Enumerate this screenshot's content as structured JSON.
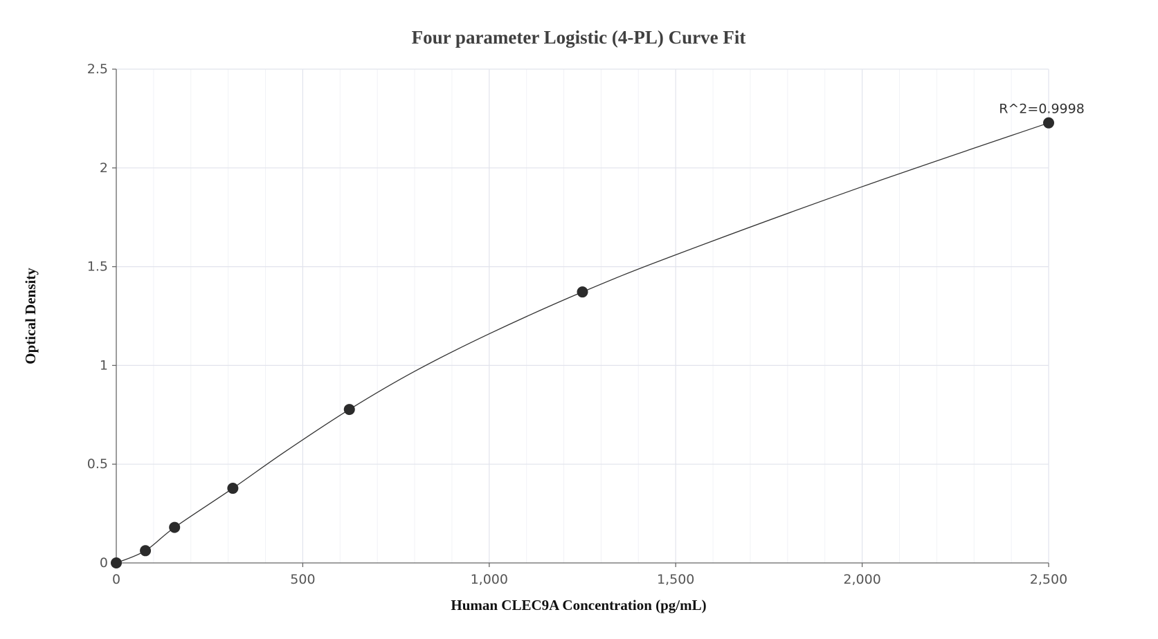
{
  "chart_data": {
    "type": "scatter",
    "title": "Four parameter Logistic (4-PL) Curve Fit",
    "xlabel": "Human CLEC9A Concentration (pg/mL)",
    "ylabel": "Optical Density",
    "xlim": [
      0,
      2500
    ],
    "ylim": [
      0,
      2.5
    ],
    "x_ticks": [
      0,
      500,
      1000,
      1500,
      2000,
      2500
    ],
    "x_tick_labels": [
      "0",
      "500",
      "1,000",
      "1,500",
      "2,000",
      "2,500"
    ],
    "y_ticks": [
      0,
      0.5,
      1,
      1.5,
      2,
      2.5
    ],
    "y_tick_labels": [
      "0",
      "0.5",
      "1",
      "1.5",
      "2",
      "2.5"
    ],
    "grid": true,
    "points": [
      {
        "x": 0,
        "y": 0.0
      },
      {
        "x": 78.1,
        "y": 0.062
      },
      {
        "x": 156.3,
        "y": 0.18
      },
      {
        "x": 312.5,
        "y": 0.378
      },
      {
        "x": 625,
        "y": 0.777
      },
      {
        "x": 1250,
        "y": 1.372
      },
      {
        "x": 2500,
        "y": 2.228
      }
    ],
    "fit_curve": [
      {
        "x": 0,
        "y": 0.0
      },
      {
        "x": 78.1,
        "y": 0.062
      },
      {
        "x": 156.3,
        "y": 0.18
      },
      {
        "x": 312.5,
        "y": 0.378
      },
      {
        "x": 450,
        "y": 0.56
      },
      {
        "x": 625,
        "y": 0.777
      },
      {
        "x": 800,
        "y": 0.97
      },
      {
        "x": 1000,
        "y": 1.16
      },
      {
        "x": 1250,
        "y": 1.372
      },
      {
        "x": 1500,
        "y": 1.56
      },
      {
        "x": 2000,
        "y": 1.905
      },
      {
        "x": 2500,
        "y": 2.228
      }
    ],
    "annotation": {
      "text": "R^2=0.9998",
      "x": 2500,
      "y": 2.228
    }
  },
  "colors": {
    "points": "#2b2b2b",
    "curve": "#333333",
    "grid": "#e1e3ec",
    "title": "#404040"
  }
}
